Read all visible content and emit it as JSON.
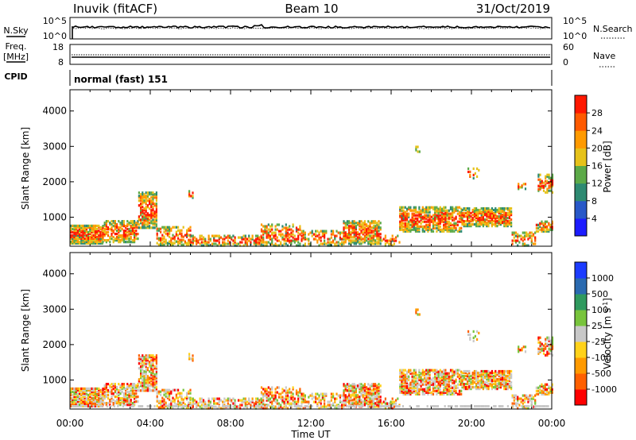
{
  "header": {
    "station": "Inuvik (fitACF)",
    "beam": "Beam 10",
    "date": "31/Oct/2019"
  },
  "sky_panel": {
    "left_label": "N.Sky",
    "right_label": "N.Search",
    "left_ticks": [
      "10^5",
      "10^0"
    ],
    "right_ticks": [
      "10^5",
      "10^0"
    ]
  },
  "freq_panel": {
    "left_label_1": "Freq.",
    "left_label_2": "[MHz]",
    "right_label": "Nave",
    "left_ticks": [
      "18",
      "8"
    ],
    "right_ticks": [
      "60",
      "0"
    ]
  },
  "cpid": {
    "label": "CPID",
    "mode_text": "normal (fast) 151"
  },
  "colors": {
    "power_scale": [
      "#1c1cff",
      "#2858c8",
      "#2e8a72",
      "#5caa48",
      "#e6c21a",
      "#ff9a00",
      "#ff5a00",
      "#ff1800"
    ],
    "velocity_scale": [
      "#ff0000",
      "#ff6000",
      "#ff9a00",
      "#ffd21a",
      "#c8c8c8",
      "#78c43c",
      "#2f9a5e",
      "#2a6ab0",
      "#1c3cff"
    ]
  },
  "chart_data": [
    {
      "type": "heatmap",
      "name": "power",
      "ylabel": "Slant Range [km]",
      "ylim": [
        180,
        4600
      ],
      "yticks": [
        1000,
        2000,
        3000,
        4000
      ],
      "xlim": [
        0,
        24
      ],
      "xtick_labels": [
        "00:00",
        "04:00",
        "08:00",
        "12:00",
        "16:00",
        "20:00",
        "00:00"
      ],
      "colorbar_label": "Power [dB]",
      "colorbar_ticks": [
        "28",
        "24",
        "20",
        "16",
        "12",
        "8",
        "4"
      ],
      "colorbar_range": [
        0,
        32
      ]
    },
    {
      "type": "heatmap",
      "name": "velocity",
      "ylabel": "Slant Range [km]",
      "ylim": [
        180,
        4600
      ],
      "yticks": [
        1000,
        2000,
        3000,
        4000
      ],
      "xlim": [
        0,
        24
      ],
      "xtick_labels": [
        "00:00",
        "04:00",
        "08:00",
        "12:00",
        "16:00",
        "20:00",
        "00:00"
      ],
      "xlabel": "Time UT",
      "colorbar_label": "Velocity [m s^-1]",
      "colorbar_ticks": [
        "1000",
        "500",
        "100",
        "25",
        "-25",
        "-100",
        "-500",
        "-1000"
      ]
    }
  ]
}
